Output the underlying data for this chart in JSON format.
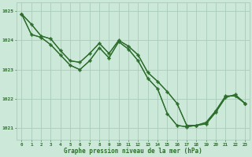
{
  "xlabel": "Graphe pression niveau de la mer (hPa)",
  "background_color": "#cce8d8",
  "grid_color": "#aaccbb",
  "line_color": "#2d6e2d",
  "xlim_min": -0.5,
  "xlim_max": 23.5,
  "ylim_min": 1020.6,
  "ylim_max": 1025.3,
  "yticks": [
    1021,
    1022,
    1023,
    1024,
    1025
  ],
  "xticks": [
    0,
    1,
    2,
    3,
    4,
    5,
    6,
    7,
    8,
    9,
    10,
    11,
    12,
    13,
    14,
    15,
    16,
    17,
    18,
    19,
    20,
    21,
    22,
    23
  ],
  "line_data": {
    "line1": [
      1024.9,
      1024.55,
      1024.15,
      1024.05,
      1023.65,
      1023.3,
      1023.25,
      1023.55,
      1023.9,
      1023.55,
      1024.0,
      1023.8,
      1023.5,
      1022.9,
      1022.6,
      1022.25,
      1021.85,
      1021.1,
      1021.1,
      1021.2,
      1021.6,
      1022.1,
      1022.1,
      1021.85
    ],
    "line2": [
      1024.9,
      1024.55,
      1024.15,
      1024.05,
      1023.65,
      1023.3,
      1023.25,
      1023.55,
      1023.9,
      1023.55,
      1024.0,
      1023.8,
      1023.5,
      1022.9,
      1022.6,
      1022.25,
      1021.85,
      1021.1,
      1021.1,
      1021.2,
      1021.6,
      1022.1,
      1022.1,
      1021.85
    ],
    "line3": [
      1024.9,
      1024.2,
      1024.1,
      1023.85,
      1023.5,
      1023.15,
      1023.0,
      1023.3,
      1023.75,
      1023.4,
      1023.95,
      1023.7,
      1023.3,
      1022.7,
      1022.35,
      1021.5,
      1021.1,
      1021.05,
      1021.1,
      1021.15,
      1021.55,
      1022.05,
      1022.15,
      1021.85
    ],
    "line4": [
      1024.9,
      1024.2,
      1024.1,
      1023.85,
      1023.5,
      1023.15,
      1023.0,
      1023.3,
      1023.75,
      1023.4,
      1023.95,
      1023.7,
      1023.3,
      1022.7,
      1022.35,
      1021.5,
      1021.1,
      1021.05,
      1021.1,
      1021.15,
      1021.55,
      1022.05,
      1022.15,
      1021.85
    ]
  }
}
